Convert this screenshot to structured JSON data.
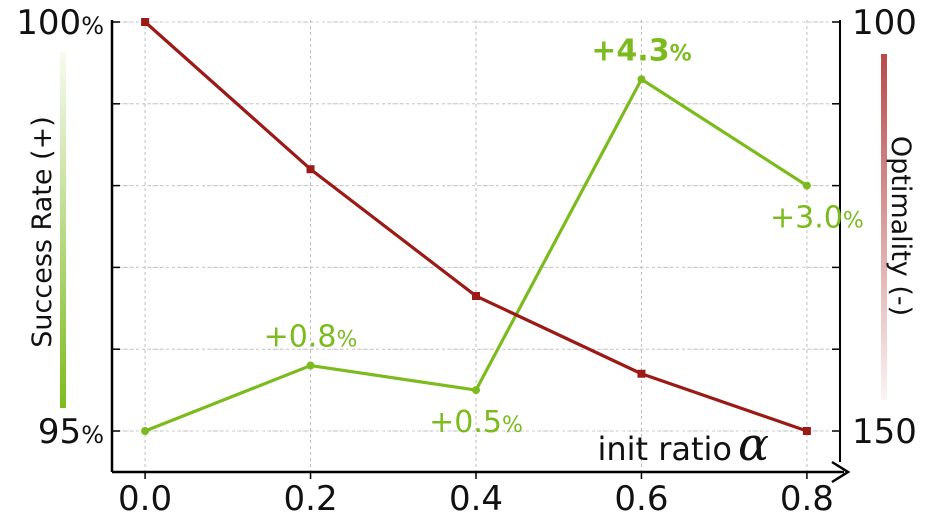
{
  "chart_data": {
    "type": "line",
    "x": [
      0.0,
      0.2,
      0.4,
      0.6,
      0.8
    ],
    "x_tick_labels": [
      "0.0",
      "0.2",
      "0.4",
      "0.6",
      "0.8"
    ],
    "xlim": [
      -0.04,
      0.84
    ],
    "xlabel_text": "init ratio",
    "xlabel_symbol": "α",
    "grid": true,
    "left_axis": {
      "label": "Success Rate (+)",
      "ylim": [
        95,
        100
      ],
      "ticks": [
        {
          "value": 100,
          "number": "100",
          "unit": "%"
        },
        {
          "value": 95,
          "number": "95",
          "unit": "%"
        }
      ]
    },
    "right_axis": {
      "label": "Optimality (-)",
      "ylim": [
        100,
        150
      ],
      "inverted": true,
      "ticks": [
        {
          "value": 100,
          "number": "100"
        },
        {
          "value": 150,
          "number": "150"
        }
      ]
    },
    "series": [
      {
        "axis": "left",
        "color": "#7cbb1e",
        "marker": "circle",
        "values": [
          95.0,
          95.8,
          95.5,
          99.3,
          98.0
        ],
        "annotations": [
          null,
          {
            "number": "+0.8",
            "unit": "%",
            "bold": false,
            "pos": "above"
          },
          {
            "number": "+0.5",
            "unit": "%",
            "bold": false,
            "pos": "below"
          },
          {
            "number": "+4.3",
            "unit": "%",
            "bold": true,
            "pos": "above"
          },
          {
            "number": "+3.0",
            "unit": "%",
            "bold": false,
            "pos": "below"
          }
        ]
      },
      {
        "axis": "right",
        "color": "#9b1a16",
        "marker": "square",
        "values": [
          100.0,
          118.0,
          133.5,
          143.0,
          150.0
        ]
      }
    ],
    "colors": {
      "success": "#7cbb1e",
      "optimality": "#9b1a16",
      "grid": "#bdbdbd",
      "axis": "#000000"
    }
  }
}
